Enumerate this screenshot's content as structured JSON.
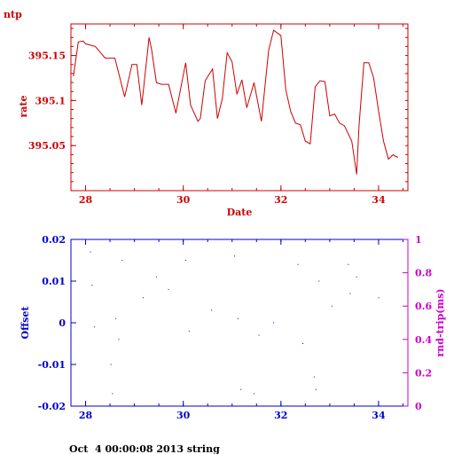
{
  "chart_data": [
    {
      "type": "line",
      "corner_label": "ntp",
      "xlabel": "Date",
      "ylabel": "rate",
      "xlim": [
        27.7,
        34.6
      ],
      "ylim": [
        395.0,
        395.185
      ],
      "xticks": [
        "28",
        "30",
        "32",
        "34"
      ],
      "yticks": [
        "395.05",
        "395.1",
        "395.15"
      ],
      "color": "#cc0000",
      "series": [
        {
          "x": [
            27.75,
            27.85,
            27.95,
            28.0,
            28.2,
            28.4,
            28.6,
            28.8,
            28.95,
            29.05,
            29.15,
            29.3,
            29.35,
            29.45,
            29.55,
            29.7,
            29.85,
            30.05,
            30.15,
            30.3,
            30.35,
            30.45,
            30.6,
            30.7,
            30.8,
            30.9,
            31.0,
            31.1,
            31.2,
            31.3,
            31.45,
            31.6,
            31.75,
            31.85,
            32.0,
            32.1,
            32.2,
            32.3,
            32.4,
            32.5,
            32.6,
            32.7,
            32.8,
            32.9,
            33.0,
            33.1,
            33.2,
            33.3,
            33.45,
            33.55,
            33.6,
            33.7,
            33.8,
            33.9,
            34.0,
            34.1,
            34.2,
            34.3,
            34.35,
            34.4
          ],
          "y": [
            395.127,
            395.165,
            395.166,
            395.163,
            395.16,
            395.147,
            395.147,
            395.104,
            395.14,
            395.14,
            395.095,
            395.17,
            395.157,
            395.12,
            395.118,
            395.118,
            395.086,
            395.142,
            395.095,
            395.077,
            395.08,
            395.122,
            395.135,
            395.08,
            395.102,
            395.153,
            395.143,
            395.107,
            395.123,
            395.092,
            395.12,
            395.077,
            395.156,
            395.178,
            395.172,
            395.112,
            395.088,
            395.075,
            395.073,
            395.055,
            395.052,
            395.115,
            395.122,
            395.121,
            395.083,
            395.085,
            395.075,
            395.072,
            395.055,
            395.018,
            395.072,
            395.142,
            395.142,
            395.125,
            395.088,
            395.055,
            395.035,
            395.04,
            395.038,
            395.037
          ]
        }
      ]
    },
    {
      "type": "scatter",
      "xlabel": "",
      "ylabel": "Offset",
      "ylabel_right": "rnd-trip(ms)",
      "xlim": [
        27.7,
        34.6
      ],
      "ylim": [
        -0.02,
        0.02
      ],
      "ylim_right": [
        0,
        1
      ],
      "xticks": [
        "28",
        "30",
        "32",
        "34"
      ],
      "yticks": [
        "-0.02",
        "-0.01",
        "0",
        "0.01",
        "0.02"
      ],
      "yticks_right": [
        "0",
        "0.2",
        "0.4",
        "0.6",
        "0.8",
        "1"
      ],
      "color": "#0000cc",
      "color_right": "#cc00cc",
      "series": [
        {
          "x": [
            28.1,
            28.13,
            28.18,
            28.52,
            28.55,
            28.62,
            28.68,
            28.75,
            29.18,
            29.45,
            29.7,
            30.05,
            30.12,
            30.58,
            31.05,
            31.12,
            31.18,
            31.45,
            31.55,
            31.85,
            32.35,
            32.45,
            32.68,
            32.72,
            32.78,
            33.05,
            33.38,
            33.42,
            33.55,
            34.0
          ],
          "y": [
            0.017,
            0.009,
            -0.001,
            -0.01,
            -0.017,
            0.001,
            -0.004,
            0.015,
            0.006,
            0.011,
            0.008,
            0.015,
            -0.002,
            0.003,
            0.016,
            0.001,
            -0.016,
            -0.017,
            -0.003,
            0.0,
            0.014,
            -0.005,
            -0.013,
            -0.016,
            0.01,
            0.004,
            0.014,
            0.007,
            0.011,
            0.006
          ]
        }
      ]
    }
  ],
  "footer": {
    "text": "Oct  4 00:00:08 2013 string"
  }
}
